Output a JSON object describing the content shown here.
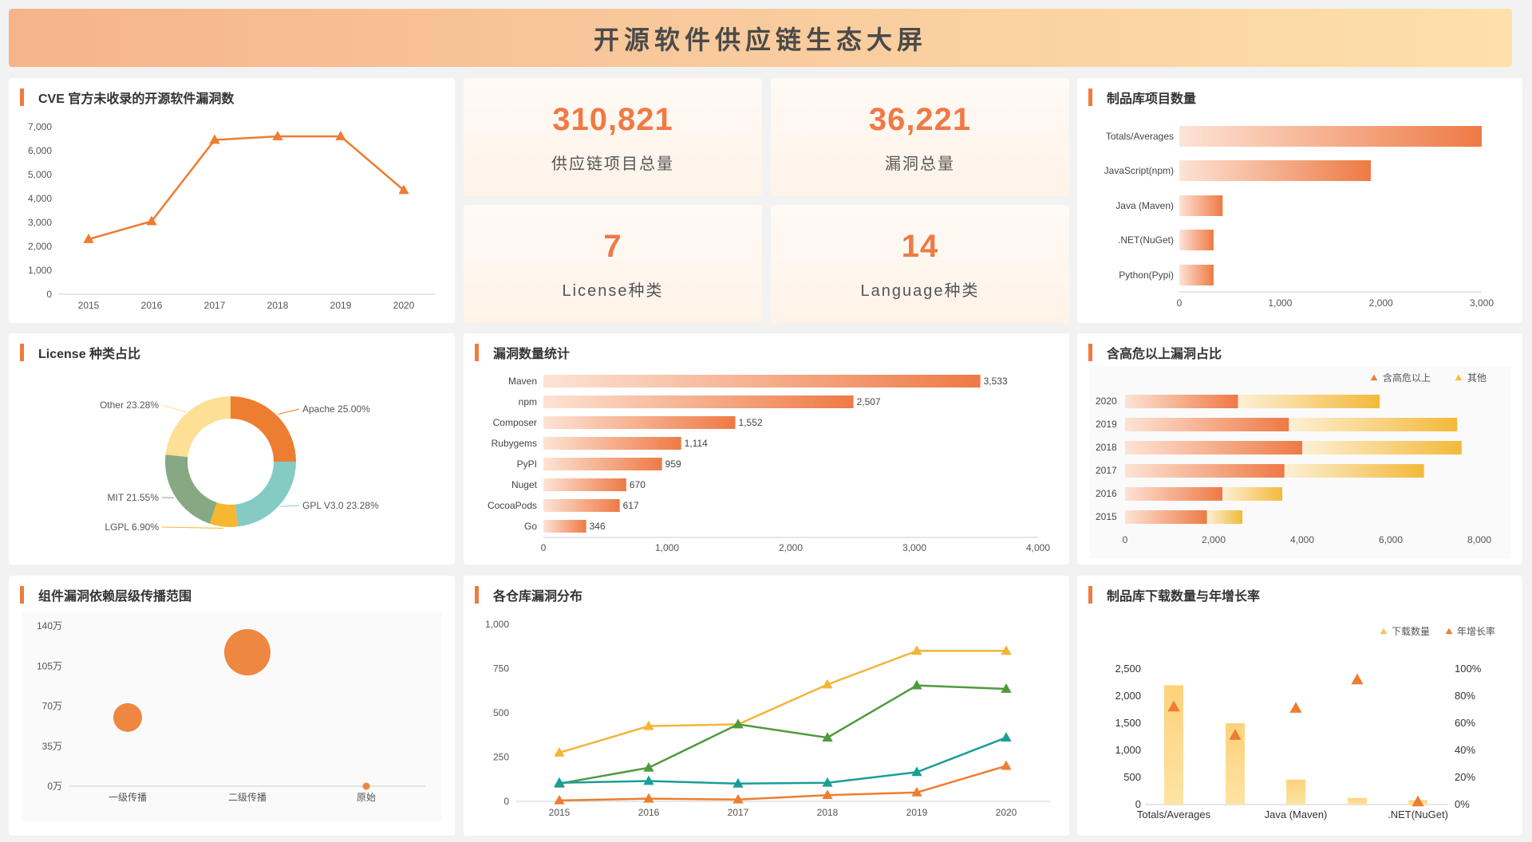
{
  "header": {
    "title": "开源软件供应链生态大屏"
  },
  "stats": [
    {
      "value": "310,821",
      "label": "供应链项目总量"
    },
    {
      "value": "36,221",
      "label": "漏洞总量"
    },
    {
      "value": "7",
      "label": "License种类"
    },
    {
      "value": "14",
      "label": "Language种类"
    }
  ],
  "colors": {
    "accent": "#f07b3f",
    "orange": "#ed7d31",
    "yellow": "#f3c142",
    "green": "#4f9a3d",
    "teal": "#1a9e96",
    "light_yellow": "#fdd27a"
  },
  "chart_data": [
    {
      "id": "cve",
      "type": "line",
      "title": "CVE 官方未收录的开源软件漏洞数",
      "x": [
        "2015",
        "2016",
        "2017",
        "2018",
        "2019",
        "2020"
      ],
      "values": [
        2300,
        3050,
        6450,
        6600,
        6600,
        4350
      ],
      "yticks": [
        "0",
        "1,000",
        "2,000",
        "3,000",
        "4,000",
        "5,000",
        "6,000",
        "7,000"
      ],
      "ylim": [
        0,
        7000
      ]
    },
    {
      "id": "repo_count",
      "type": "bar",
      "orientation": "horizontal",
      "title": "制品库项目数量",
      "categories": [
        "Totals/Averages",
        "JavaScript(npm)",
        "Java (Maven)",
        ".NET(NuGet)",
        "Python(Pypi)"
      ],
      "values": [
        3000,
        1900,
        430,
        340,
        340
      ],
      "xticks": [
        "0",
        "1,000",
        "2,000",
        "3,000"
      ],
      "xlim": [
        0,
        3000
      ]
    },
    {
      "id": "license",
      "type": "pie",
      "title": "License 种类占比",
      "slices": [
        {
          "label": "Apache 25.00%",
          "value": 25.0,
          "color": "#ed7d31"
        },
        {
          "label": "GPL V3.0 23.28%",
          "value": 23.28,
          "color": "#86cbc3"
        },
        {
          "label": "LGPL 6.90%",
          "value": 6.9,
          "color": "#f7b731"
        },
        {
          "label": "MIT 21.55%",
          "value": 21.55,
          "color": "#86a883"
        },
        {
          "label": "Other 23.28%",
          "value": 23.28,
          "color": "#fddf95"
        }
      ]
    },
    {
      "id": "vuln_count",
      "type": "bar",
      "orientation": "horizontal",
      "title": "漏洞数量统计",
      "categories": [
        "Maven",
        "npm",
        "Composer",
        "Rubygems",
        "PyPI",
        "Nuget",
        "CocoaPods",
        "Go"
      ],
      "values": [
        3533,
        2507,
        1552,
        1114,
        959,
        670,
        617,
        346
      ],
      "value_labels": [
        "3,533",
        "2,507",
        "1,552",
        "1,114",
        "959",
        "670",
        "617",
        "346"
      ],
      "xticks": [
        "0",
        "1,000",
        "2,000",
        "3,000",
        "4,000"
      ],
      "xlim": [
        0,
        4000
      ]
    },
    {
      "id": "high_risk",
      "type": "bar",
      "orientation": "horizontal",
      "stacked": true,
      "title": "含高危以上漏洞占比",
      "categories": [
        "2020",
        "2019",
        "2018",
        "2017",
        "2016",
        "2015"
      ],
      "series": [
        {
          "name": "含高危以上",
          "values": [
            2550,
            3700,
            4000,
            3600,
            2200,
            1850
          ]
        },
        {
          "name": "其他",
          "values": [
            3200,
            3800,
            3600,
            3150,
            1350,
            800
          ]
        }
      ],
      "xticks": [
        "0",
        "2,000",
        "4,000",
        "6,000",
        "8,000"
      ],
      "xlim": [
        0,
        8000
      ]
    },
    {
      "id": "spread",
      "type": "scatter",
      "title": "组件漏洞依赖层级传播范围",
      "categories": [
        "一级传播",
        "二级传播",
        "原始"
      ],
      "values": [
        60,
        117,
        0
      ],
      "sizes": [
        36,
        58,
        9
      ],
      "yticks": [
        "0万",
        "35万",
        "70万",
        "105万",
        "140万"
      ],
      "ylim": [
        0,
        140
      ]
    },
    {
      "id": "repo_vuln",
      "type": "line",
      "title": "各仓库漏洞分布",
      "x": [
        "2015",
        "2016",
        "2017",
        "2018",
        "2019",
        "2020"
      ],
      "series": [
        {
          "values": [
            275,
            425,
            435,
            660,
            850,
            850
          ],
          "color": "#f3b53a"
        },
        {
          "values": [
            100,
            190,
            435,
            360,
            655,
            635
          ],
          "color": "#4f9a3d"
        },
        {
          "values": [
            105,
            115,
            100,
            105,
            165,
            360
          ],
          "color": "#1a9e96"
        },
        {
          "values": [
            5,
            15,
            10,
            35,
            50,
            200
          ],
          "color": "#ed7d31"
        }
      ],
      "yticks": [
        "0",
        "250",
        "500",
        "750",
        "1,000"
      ],
      "ylim": [
        0,
        1000
      ]
    },
    {
      "id": "downloads",
      "type": "bar",
      "title": "制品库下载数量与年增长率",
      "categories": [
        "Totals/Averages",
        "",
        "Java (Maven)",
        "",
        ".NET(NuGet)"
      ],
      "series": [
        {
          "name": "下载数量",
          "values": [
            2200,
            1500,
            460,
            120,
            80
          ]
        },
        {
          "name": "年增长率",
          "values": [
            72,
            51,
            71,
            92,
            2
          ]
        }
      ],
      "yticks_left": [
        "0",
        "500",
        "1,000",
        "1,500",
        "2,000",
        "2,500"
      ],
      "yticks_right": [
        "0%",
        "20%",
        "40%",
        "60%",
        "80%",
        "100%"
      ],
      "ylim_left": [
        0,
        2500
      ],
      "ylim_right": [
        0,
        100
      ]
    }
  ]
}
